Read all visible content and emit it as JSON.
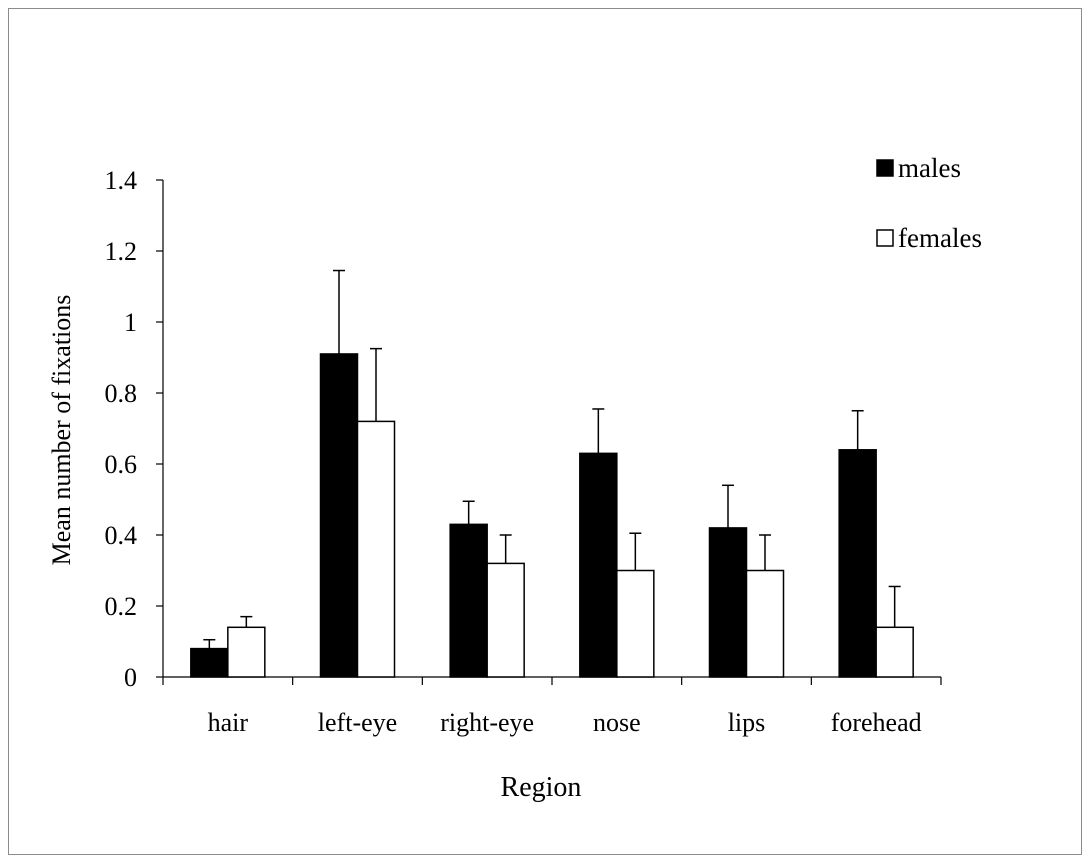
{
  "chart_data": {
    "type": "bar",
    "title": "",
    "xlabel": "Region",
    "ylabel": "Mean number of fixations",
    "ylim": [
      0,
      1.4
    ],
    "yticks": [
      "0",
      "0.2",
      "0.4",
      "0.6",
      "0.8",
      "1",
      "1.2",
      "1.4"
    ],
    "categories": [
      "hair",
      "left-eye",
      "right-eye",
      "nose",
      "lips",
      "forehead"
    ],
    "series": [
      {
        "name": "males",
        "color": "#000000",
        "values": [
          0.08,
          0.91,
          0.43,
          0.63,
          0.42,
          0.64
        ],
        "errors": [
          0.025,
          0.235,
          0.065,
          0.125,
          0.12,
          0.11
        ]
      },
      {
        "name": "females",
        "color": "#ffffff",
        "values": [
          0.14,
          0.72,
          0.32,
          0.3,
          0.3,
          0.14
        ],
        "errors": [
          0.03,
          0.205,
          0.08,
          0.105,
          0.1,
          0.115
        ]
      }
    ],
    "legend": "top-right",
    "grid": false,
    "error_bars": "upper"
  }
}
